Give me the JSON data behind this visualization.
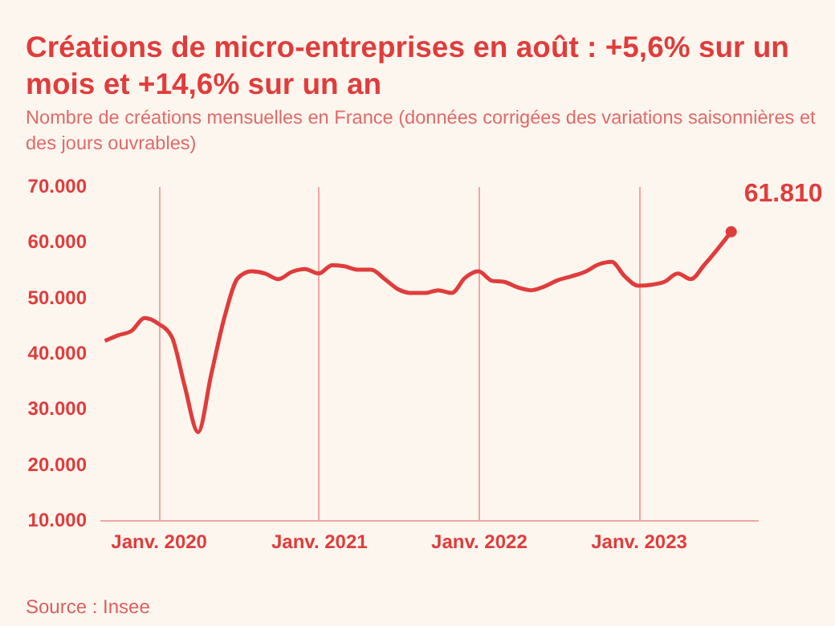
{
  "chart_data": {
    "type": "line",
    "title": "Créations de micro-entreprises en août : +5,6% sur un mois et +14,6% sur un an",
    "subtitle": "Nombre de créations mensuelles en France (données corrigées des variations saisonnières et des jours ouvrables)",
    "x": [
      "2019-09",
      "2019-10",
      "2019-11",
      "2019-12",
      "2020-01",
      "2020-02",
      "2020-03",
      "2020-04",
      "2020-05",
      "2020-06",
      "2020-07",
      "2020-08",
      "2020-09",
      "2020-10",
      "2020-11",
      "2020-12",
      "2021-01",
      "2021-02",
      "2021-03",
      "2021-04",
      "2021-05",
      "2021-06",
      "2021-07",
      "2021-08",
      "2021-09",
      "2021-10",
      "2021-11",
      "2021-12",
      "2022-01",
      "2022-02",
      "2022-03",
      "2022-04",
      "2022-05",
      "2022-06",
      "2022-07",
      "2022-08",
      "2022-09",
      "2022-10",
      "2022-11",
      "2022-12",
      "2023-01",
      "2023-02",
      "2023-03",
      "2023-04",
      "2023-05",
      "2023-06",
      "2023-07",
      "2023-08"
    ],
    "series": [
      {
        "color": "#e03c3c",
        "values": [
          42200,
          43200,
          44000,
          46300,
          45300,
          42900,
          34200,
          25800,
          36200,
          46700,
          53500,
          54700,
          54300,
          53300,
          54600,
          55100,
          54300,
          55800,
          55600,
          55000,
          55000,
          53300,
          51500,
          50800,
          50800,
          51300,
          50800,
          53500,
          54700,
          53000,
          52800,
          51800,
          51300,
          52000,
          53100,
          53800,
          54600,
          55900,
          56400,
          53800,
          52100,
          52300,
          52800,
          54300,
          53300,
          55900,
          58700,
          61810
        ]
      }
    ],
    "xlim": [
      "2019-08-20",
      "2023-10-01"
    ],
    "xticks": [
      {
        "value": "2020-01",
        "label": "Janv. 2020"
      },
      {
        "value": "2021-01",
        "label": "Janv. 2021"
      },
      {
        "value": "2022-01",
        "label": "Janv. 2022"
      },
      {
        "value": "2023-01",
        "label": "Janv. 2023"
      }
    ],
    "ylim": [
      10000,
      70000
    ],
    "yticks": [
      {
        "value": 10000,
        "label": "10.000"
      },
      {
        "value": 20000,
        "label": "20.000"
      },
      {
        "value": 30000,
        "label": "30.000"
      },
      {
        "value": 40000,
        "label": "40.000"
      },
      {
        "value": 50000,
        "label": "50.000"
      },
      {
        "value": 60000,
        "label": "60.000"
      },
      {
        "value": 70000,
        "label": "70.000"
      }
    ],
    "grid": "x",
    "annotations": [
      {
        "text": "61.810",
        "x": "2023-08",
        "y": 61810
      },
      "Source : Insee"
    ]
  }
}
